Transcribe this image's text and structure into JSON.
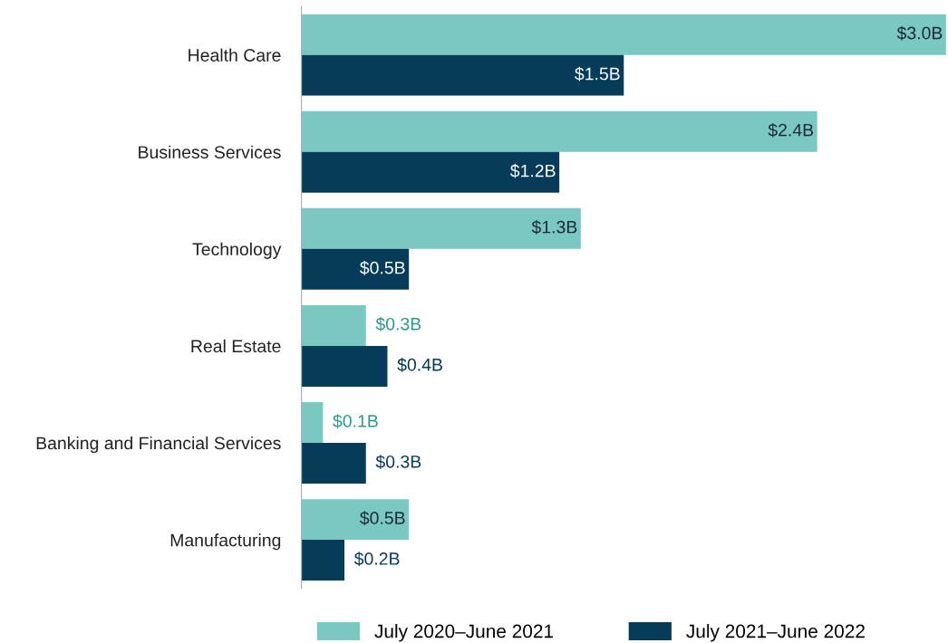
{
  "chart_data": {
    "type": "bar",
    "orientation": "horizontal",
    "categories": [
      "Health Care",
      "Business Services",
      "Technology",
      "Real Estate",
      "Banking and Financial Services",
      "Manufacturing"
    ],
    "series": [
      {
        "name": "July 2020–June 2021",
        "color": "#79c9c2",
        "values": [
          3.0,
          2.4,
          1.3,
          0.3,
          0.1,
          0.5
        ],
        "value_labels": [
          "$3.0B",
          "$2.4B",
          "$1.3B",
          "$0.3B",
          "$0.1B",
          "$0.5B"
        ]
      },
      {
        "name": "July 2021–June 2022",
        "color": "#073b5a",
        "values": [
          1.5,
          1.2,
          0.5,
          0.4,
          0.3,
          0.2
        ],
        "value_labels": [
          "$1.5B",
          "$1.2B",
          "$0.5B",
          "$0.4B",
          "$0.3B",
          "$0.2B"
        ]
      }
    ],
    "legend": "bottom",
    "grid": false
  }
}
